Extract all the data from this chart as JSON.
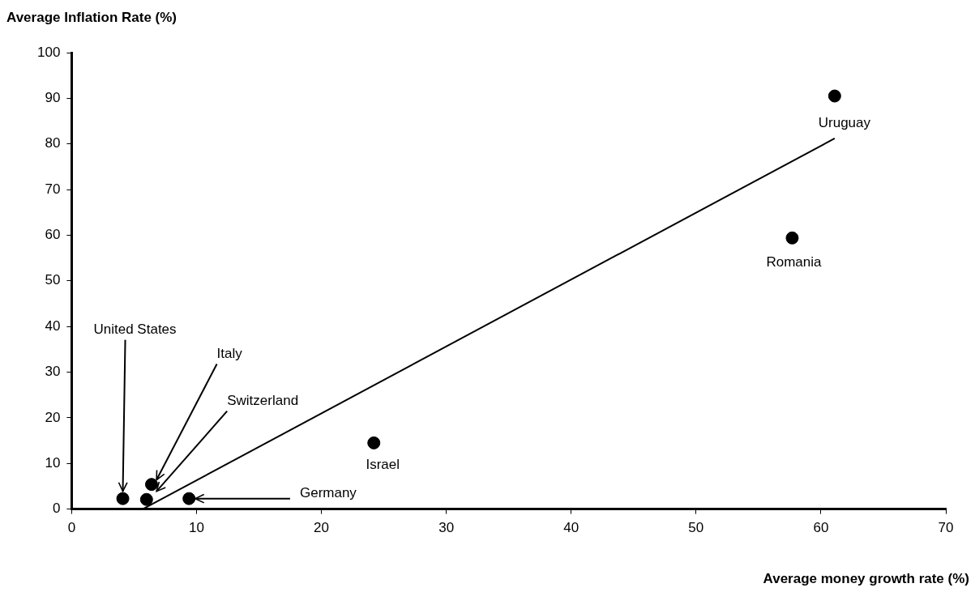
{
  "chart_data": {
    "type": "scatter",
    "xlabel": "Average money growth rate (%)",
    "ylabel": "Average Inflation Rate (%)",
    "series": [
      {
        "marker": "circle",
        "color": "#000000",
        "x": [
          61.1,
          57.7,
          24.2,
          4.1,
          6.4,
          6.0,
          9.4
        ],
        "values": [
          90.5,
          59.4,
          14.5,
          2.3,
          5.4,
          2.1,
          2.3
        ]
      },
      {
        "type": "line",
        "marker": "none",
        "color": "#000000",
        "x": [
          5.7,
          61.1
        ],
        "values": [
          0,
          81.2
        ]
      }
    ],
    "annotations": [
      {
        "text": "Uruguay",
        "x": 61.1,
        "y": 90.5
      },
      {
        "text": "Romania",
        "x": 57.7,
        "y": 59.4
      },
      {
        "text": "Israel",
        "x": 24.2,
        "y": 14.5
      },
      {
        "text": "United States",
        "x": 4.1,
        "y": 3.9
      },
      {
        "text": "Italy",
        "x": 6.8,
        "y": 6.4
      },
      {
        "text": "Switzerland",
        "x": 6.8,
        "y": 3.9
      },
      {
        "text": "Germany",
        "x": 9.9,
        "y": 2.3
      }
    ],
    "xlim": [
      0,
      70
    ],
    "xticks": [
      0,
      10,
      20,
      30,
      40,
      50,
      60,
      70
    ],
    "ylim": [
      0,
      100
    ],
    "yticks": [
      0,
      10,
      20,
      30,
      40,
      50,
      60,
      70,
      80,
      90,
      100
    ],
    "grid": false,
    "legend": false,
    "line_style": "solid"
  }
}
